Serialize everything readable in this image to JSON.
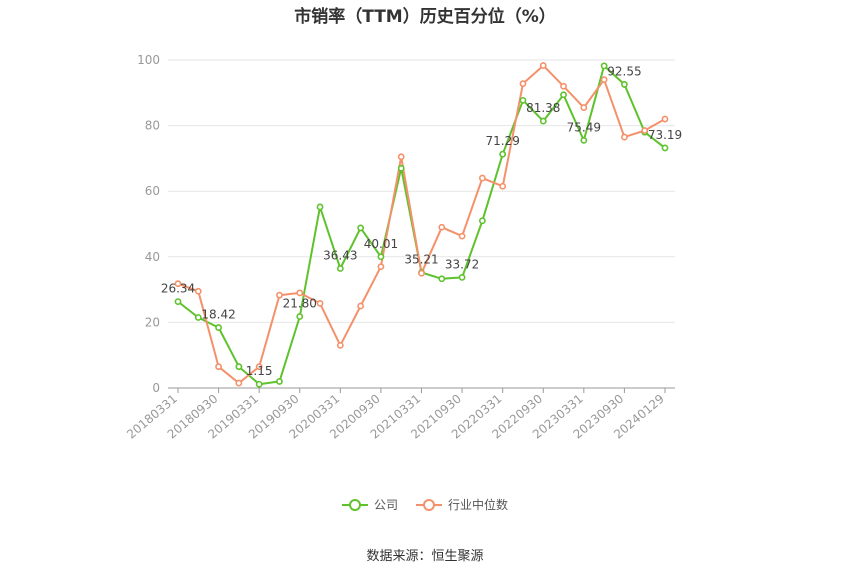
{
  "chart_data": {
    "type": "line",
    "title": "市销率（TTM）历史百分位（%）",
    "x": [
      "20180331",
      "20180630",
      "20180930",
      "20181231",
      "20190331",
      "20190630",
      "20190930",
      "20191231",
      "20200331",
      "20200630",
      "20200930",
      "20201231",
      "20210331",
      "20210630",
      "20210930",
      "20211231",
      "20220331",
      "20220630",
      "20220930",
      "20221231",
      "20230331",
      "20230630",
      "20230930",
      "20231231",
      "20240129"
    ],
    "x_tick_labels": [
      "20180331",
      "20180930",
      "20190331",
      "20190930",
      "20200331",
      "20200930",
      "20210331",
      "20210930",
      "20220331",
      "20220930",
      "20230331",
      "20230930",
      "20240129"
    ],
    "y_ticks": [
      "0",
      "20",
      "40",
      "60",
      "80",
      "100"
    ],
    "ylim": [
      0,
      100
    ],
    "grid": true,
    "legend_position": "bottom",
    "series": [
      {
        "name": "公司",
        "color": "#5ec22c",
        "values": [
          26.34,
          21.5,
          18.42,
          6.5,
          1.15,
          2.0,
          21.8,
          55.2,
          36.43,
          48.8,
          40.01,
          67.0,
          35.21,
          33.3,
          33.72,
          51.0,
          71.29,
          87.7,
          81.38,
          89.4,
          75.49,
          98.2,
          92.55,
          78.0,
          73.19
        ]
      },
      {
        "name": "行业中位数",
        "color": "#f5916a",
        "values": [
          31.8,
          29.5,
          6.5,
          1.5,
          6.5,
          28.3,
          29.0,
          25.8,
          13.0,
          25.0,
          37.0,
          70.5,
          35.0,
          49.0,
          46.3,
          64.0,
          61.5,
          92.8,
          98.3,
          92.0,
          85.5,
          94.0,
          76.5,
          78.5,
          82.0
        ]
      }
    ],
    "data_labels": [
      {
        "index": 0,
        "text": "26.34"
      },
      {
        "index": 2,
        "text": "18.42"
      },
      {
        "index": 4,
        "text": "1.15"
      },
      {
        "index": 6,
        "text": "21.80"
      },
      {
        "index": 8,
        "text": "36.43"
      },
      {
        "index": 10,
        "text": "40.01"
      },
      {
        "index": 12,
        "text": "35.21"
      },
      {
        "index": 14,
        "text": "33.72"
      },
      {
        "index": 16,
        "text": "71.29"
      },
      {
        "index": 18,
        "text": "81.38"
      },
      {
        "index": 20,
        "text": "75.49"
      },
      {
        "index": 22,
        "text": "92.55"
      },
      {
        "index": 24,
        "text": "73.19"
      }
    ]
  },
  "legend": {
    "items": [
      {
        "label": "公司",
        "color": "#5ec22c"
      },
      {
        "label": "行业中位数",
        "color": "#f5916a"
      }
    ]
  },
  "source": "数据来源：恒生聚源"
}
